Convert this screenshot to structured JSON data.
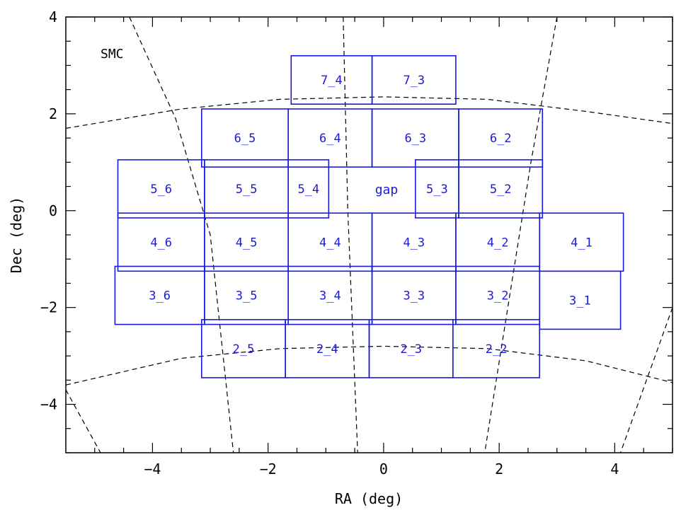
{
  "chart_data": {
    "type": "scatter",
    "xlabel": "RA (deg)",
    "ylabel": "Dec (deg)",
    "xlim": [
      -5.5,
      5.0
    ],
    "ylim": [
      -5.0,
      4.0
    ],
    "x_ticks": [
      -4,
      -2,
      0,
      2,
      4
    ],
    "x_tick_labels": [
      "−4",
      "−2",
      "0",
      "2",
      "4"
    ],
    "y_ticks": [
      -4,
      -2,
      0,
      2,
      4
    ],
    "y_tick_labels": [
      "−4",
      "−2",
      "0",
      "2",
      "4"
    ],
    "grid": false,
    "annotations": [
      {
        "text": "SMC",
        "x": -4.9,
        "y": 3.15
      },
      {
        "text": "gap",
        "x": -0.15,
        "y": 0.35
      }
    ],
    "coordinate_grid_lines": [
      {
        "points": [
          [
            -4.4,
            4.0
          ],
          [
            -3.6,
            1.9
          ],
          [
            -3.0,
            -0.5
          ],
          [
            -2.6,
            -5.0
          ]
        ]
      },
      {
        "points": [
          [
            -0.7,
            4.0
          ],
          [
            -0.62,
            0.0
          ],
          [
            -0.45,
            -5.0
          ]
        ]
      },
      {
        "points": [
          [
            3.0,
            4.0
          ],
          [
            2.55,
            1.0
          ],
          [
            1.75,
            -5.0
          ]
        ]
      },
      {
        "points": [
          [
            -5.5,
            1.7
          ],
          [
            -3.5,
            2.1
          ],
          [
            -1.8,
            2.3
          ],
          [
            0.0,
            2.35
          ],
          [
            1.8,
            2.3
          ],
          [
            3.5,
            2.05
          ],
          [
            5.0,
            1.8
          ]
        ]
      },
      {
        "points": [
          [
            -5.5,
            -3.6
          ],
          [
            -3.5,
            -3.05
          ],
          [
            -1.8,
            -2.85
          ],
          [
            0.0,
            -2.8
          ],
          [
            1.8,
            -2.85
          ],
          [
            3.5,
            -3.1
          ],
          [
            5.0,
            -3.55
          ]
        ]
      },
      {
        "points": [
          [
            -5.5,
            -3.7
          ],
          [
            -4.9,
            -5.0
          ]
        ]
      },
      {
        "points": [
          [
            5.0,
            -2.0
          ],
          [
            4.1,
            -5.0
          ]
        ]
      }
    ],
    "tiles": [
      {
        "label": "7_4",
        "x0": -1.6,
        "x1": -0.2,
        "y0": 2.2,
        "y1": 3.2
      },
      {
        "label": "7_3",
        "x0": -0.2,
        "x1": 1.25,
        "y0": 2.2,
        "y1": 3.2
      },
      {
        "label": "6_5",
        "x0": -3.15,
        "x1": -1.65,
        "y0": 0.9,
        "y1": 2.1
      },
      {
        "label": "6_4",
        "x0": -1.65,
        "x1": -0.2,
        "y0": 0.9,
        "y1": 2.1
      },
      {
        "label": "6_3",
        "x0": -0.2,
        "x1": 1.3,
        "y0": 0.9,
        "y1": 2.1
      },
      {
        "label": "6_2",
        "x0": 1.3,
        "x1": 2.75,
        "y0": 0.9,
        "y1": 2.1
      },
      {
        "label": "5_6",
        "x0": -4.6,
        "x1": -3.1,
        "y0": -0.15,
        "y1": 1.05
      },
      {
        "label": "5_5",
        "x0": -3.1,
        "x1": -1.65,
        "y0": -0.15,
        "y1": 1.05
      },
      {
        "label": "5_4",
        "x0": -1.65,
        "x1": -0.95,
        "y0": -0.15,
        "y1": 1.05
      },
      {
        "label": "5_3",
        "x0": 0.55,
        "x1": 1.3,
        "y0": -0.15,
        "y1": 1.05
      },
      {
        "label": "5_2",
        "x0": 1.3,
        "x1": 2.75,
        "y0": -0.15,
        "y1": 1.05
      },
      {
        "label": "4_6",
        "x0": -4.6,
        "x1": -3.1,
        "y0": -1.25,
        "y1": -0.05
      },
      {
        "label": "4_5",
        "x0": -3.1,
        "x1": -1.65,
        "y0": -1.25,
        "y1": -0.05
      },
      {
        "label": "4_4",
        "x0": -1.65,
        "x1": -0.2,
        "y0": -1.25,
        "y1": -0.05
      },
      {
        "label": "4_3",
        "x0": -0.2,
        "x1": 1.25,
        "y0": -1.25,
        "y1": -0.05
      },
      {
        "label": "4_2",
        "x0": 1.25,
        "x1": 2.7,
        "y0": -1.25,
        "y1": -0.05
      },
      {
        "label": "4_1",
        "x0": 2.7,
        "x1": 4.15,
        "y0": -1.25,
        "y1": -0.05
      },
      {
        "label": "3_6",
        "x0": -4.65,
        "x1": -3.1,
        "y0": -2.35,
        "y1": -1.15
      },
      {
        "label": "3_5",
        "x0": -3.1,
        "x1": -1.65,
        "y0": -2.35,
        "y1": -1.15
      },
      {
        "label": "3_4",
        "x0": -1.65,
        "x1": -0.2,
        "y0": -2.35,
        "y1": -1.15
      },
      {
        "label": "3_3",
        "x0": -0.2,
        "x1": 1.25,
        "y0": -2.35,
        "y1": -1.15
      },
      {
        "label": "3_2",
        "x0": 1.25,
        "x1": 2.7,
        "y0": -2.35,
        "y1": -1.15
      },
      {
        "label": "3_1",
        "x0": 2.7,
        "x1": 4.1,
        "y0": -2.45,
        "y1": -1.25
      },
      {
        "label": "2_5",
        "x0": -3.15,
        "x1": -1.7,
        "y0": -3.45,
        "y1": -2.25
      },
      {
        "label": "2_4",
        "x0": -1.7,
        "x1": -0.25,
        "y0": -3.45,
        "y1": -2.25
      },
      {
        "label": "2_3",
        "x0": -0.25,
        "x1": 1.2,
        "y0": -3.45,
        "y1": -2.25
      },
      {
        "label": "2_2",
        "x0": 1.2,
        "x1": 2.7,
        "y0": -3.45,
        "y1": -2.25
      }
    ],
    "colors": {
      "tile": "#1a1adc",
      "axes": "#000000",
      "grid_lines": "#000000"
    }
  }
}
